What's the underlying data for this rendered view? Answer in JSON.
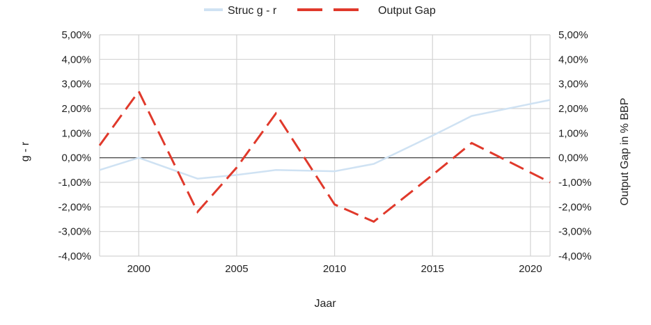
{
  "chart_data": {
    "type": "line",
    "x": [
      1998,
      2000,
      2003,
      2005,
      2007,
      2010,
      2012,
      2015,
      2017,
      2021
    ],
    "series": [
      {
        "name": "Struc g - r",
        "axis": "left",
        "color": "#cfe2f3",
        "style": "solid",
        "values": [
          -0.5,
          0.0,
          -0.85,
          -0.7,
          -0.5,
          -0.55,
          -0.25,
          0.9,
          1.7,
          2.35
        ]
      },
      {
        "name": "Output Gap",
        "axis": "right",
        "color": "#e0392b",
        "style": "dashed",
        "values": [
          0.5,
          2.7,
          -2.2,
          -0.4,
          1.8,
          -1.9,
          -2.6,
          -0.7,
          0.6,
          -1.0
        ]
      }
    ],
    "xlim": [
      1998,
      2021
    ],
    "xticks": [
      2000,
      2005,
      2010,
      2015,
      2020
    ],
    "ylim_left": [
      -4,
      5
    ],
    "ylim_right": [
      -4,
      5
    ],
    "yticks": [
      5,
      4,
      3,
      2,
      1,
      0,
      -1,
      -2,
      -3,
      -4
    ],
    "ytick_labels": [
      "5,00%",
      "4,00%",
      "3,00%",
      "2,00%",
      "1,00%",
      "0,00%",
      "-1,00%",
      "-2,00%",
      "-3,00%",
      "-4,00%"
    ],
    "xlabel": "Jaar",
    "ylabel_left": "g - r",
    "ylabel_right": "Output Gap in % BBP",
    "grid": true,
    "legend_position": "top"
  }
}
